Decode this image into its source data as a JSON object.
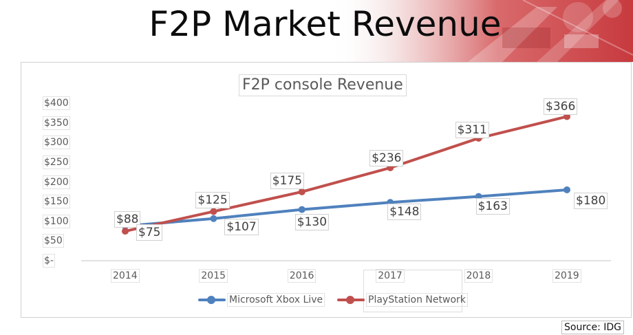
{
  "slide": {
    "title": "F2P Market Revenue",
    "source": "Source: IDG"
  },
  "colors": {
    "xbox": "#4f81bd",
    "psn": "#c0504d",
    "banner": "#c73a3e"
  },
  "chart_data": {
    "type": "line",
    "title": "F2P console Revenue",
    "categories": [
      "2014",
      "2015",
      "2016",
      "2017",
      "2018",
      "2019"
    ],
    "ylim": [
      0,
      400
    ],
    "yticks": [
      "$-",
      "$50",
      "$100",
      "$150",
      "$200",
      "$250",
      "$300",
      "$350",
      "$400"
    ],
    "legend_position": "bottom",
    "grid": false,
    "series": [
      {
        "name": "Microsoft Xbox Live",
        "values": [
          88,
          107,
          130,
          148,
          163,
          180
        ],
        "labels": [
          "$88",
          "$107",
          "$130",
          "$148",
          "$163",
          "$180"
        ]
      },
      {
        "name": "PlayStation Network",
        "values": [
          75,
          125,
          175,
          236,
          311,
          366
        ],
        "labels": [
          "$75",
          "$125",
          "$175",
          "$236",
          "$311",
          "$366"
        ]
      }
    ]
  }
}
